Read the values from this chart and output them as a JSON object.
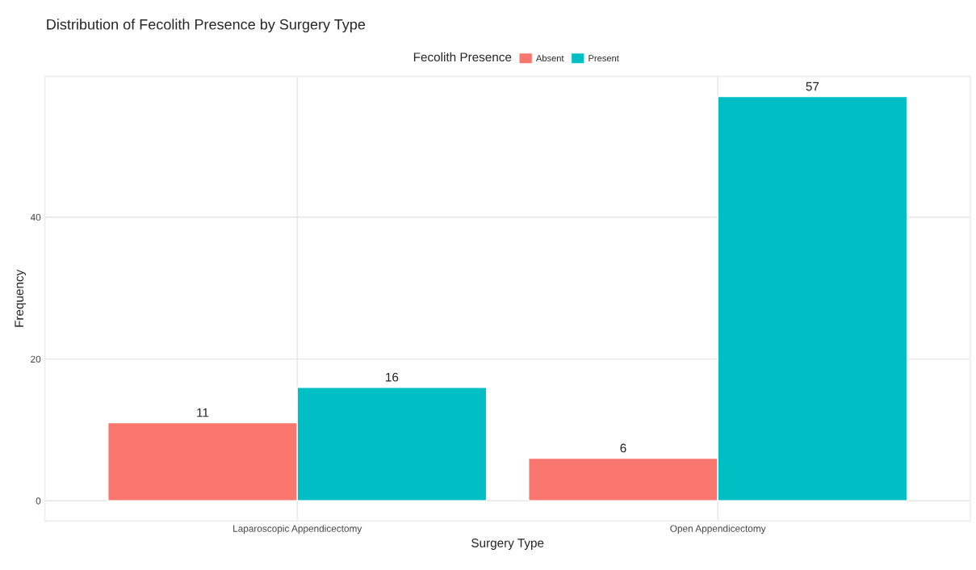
{
  "chart_data": {
    "type": "bar",
    "title": "Distribution of Fecolith Presence by Surgery Type",
    "xlabel": "Surgery Type",
    "ylabel": "Frequency",
    "legend_title": "Fecolith Presence",
    "categories": [
      "Laparoscopic Appendicectomy",
      "Open Appendicectomy"
    ],
    "series": [
      {
        "name": "Absent",
        "color": "#f8766d",
        "values": [
          11,
          6
        ]
      },
      {
        "name": "Present",
        "color": "#00bfc4",
        "values": [
          16,
          57
        ]
      }
    ],
    "ylim": [
      -2.85,
      59.85
    ],
    "yticks": [
      0,
      20,
      40
    ],
    "grid": true,
    "legend": "top",
    "data_labels": true
  }
}
